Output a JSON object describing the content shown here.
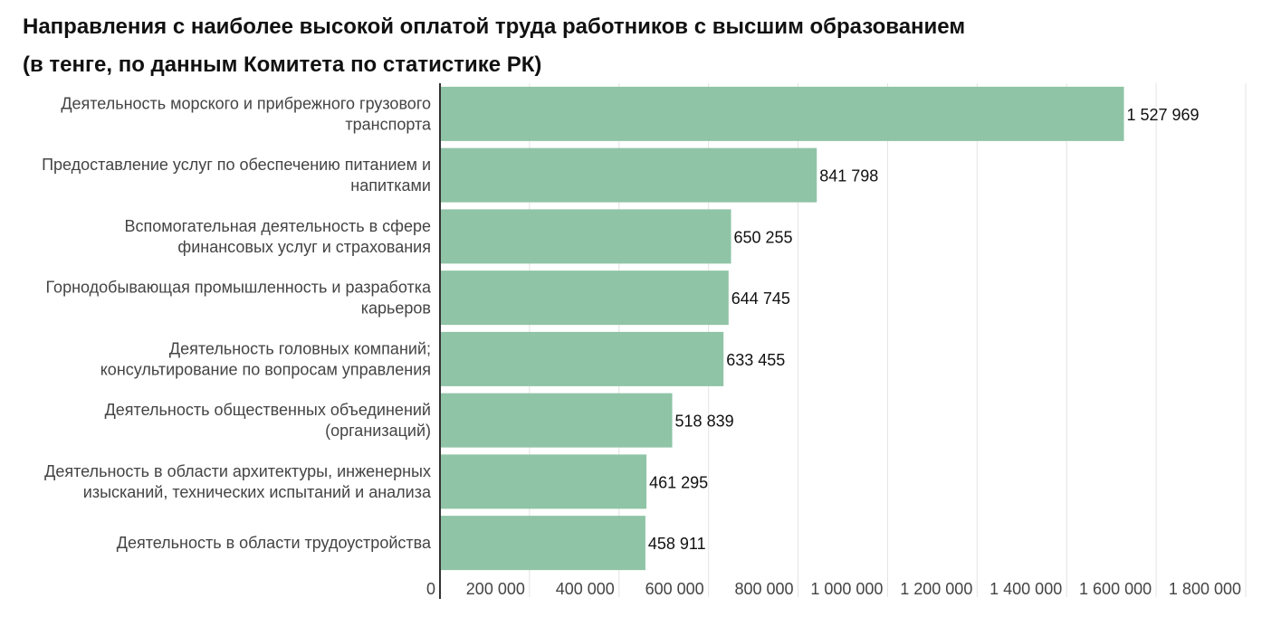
{
  "chart_data": {
    "type": "bar",
    "orientation": "horizontal",
    "title": "Направления с наиболее высокой оплатой труда работников с высшим образованием",
    "subtitle": "(в тенге, по данным Комитета по статистике РК)",
    "categories": [
      [
        "Деятельность морского и прибрежного грузового",
        "транспорта"
      ],
      [
        "Предоставление услуг по обеспечению питанием и",
        "напитками"
      ],
      [
        "Вспомогательная деятельность в сфере",
        "финансовых услуг и страхования"
      ],
      [
        "Горнодобывающая промышленность и разработка",
        "карьеров"
      ],
      [
        "Деятельность головных компаний;",
        "консультирование по вопросам управления"
      ],
      [
        "Деятельность общественных объединений",
        "(организаций)"
      ],
      [
        "Деятельность в области архитектуры, инженерных",
        "изысканий, технических испытаний и анализа"
      ],
      [
        "Деятельность в области трудоустройства"
      ]
    ],
    "values": [
      1527969,
      841798,
      650255,
      644745,
      633455,
      518839,
      461295,
      458911
    ],
    "value_labels": [
      "1 527 969",
      "841 798",
      "650 255",
      "644 745",
      "633 455",
      "518 839",
      "461 295",
      "458 911"
    ],
    "xlim": [
      0,
      1800000
    ],
    "xticks": [
      0,
      200000,
      400000,
      600000,
      800000,
      1000000,
      1200000,
      1400000,
      1600000,
      1800000
    ],
    "xtick_labels": [
      "0",
      "200 000",
      "400 000",
      "600 000",
      "800 000",
      "1 000 000",
      "1 200 000",
      "1 400 000",
      "1 600 000",
      "1 800 000"
    ],
    "grid": true,
    "bar_color": "#8fc4a6",
    "grid_color": "#e3e3e3",
    "axis_color": "#333333"
  }
}
